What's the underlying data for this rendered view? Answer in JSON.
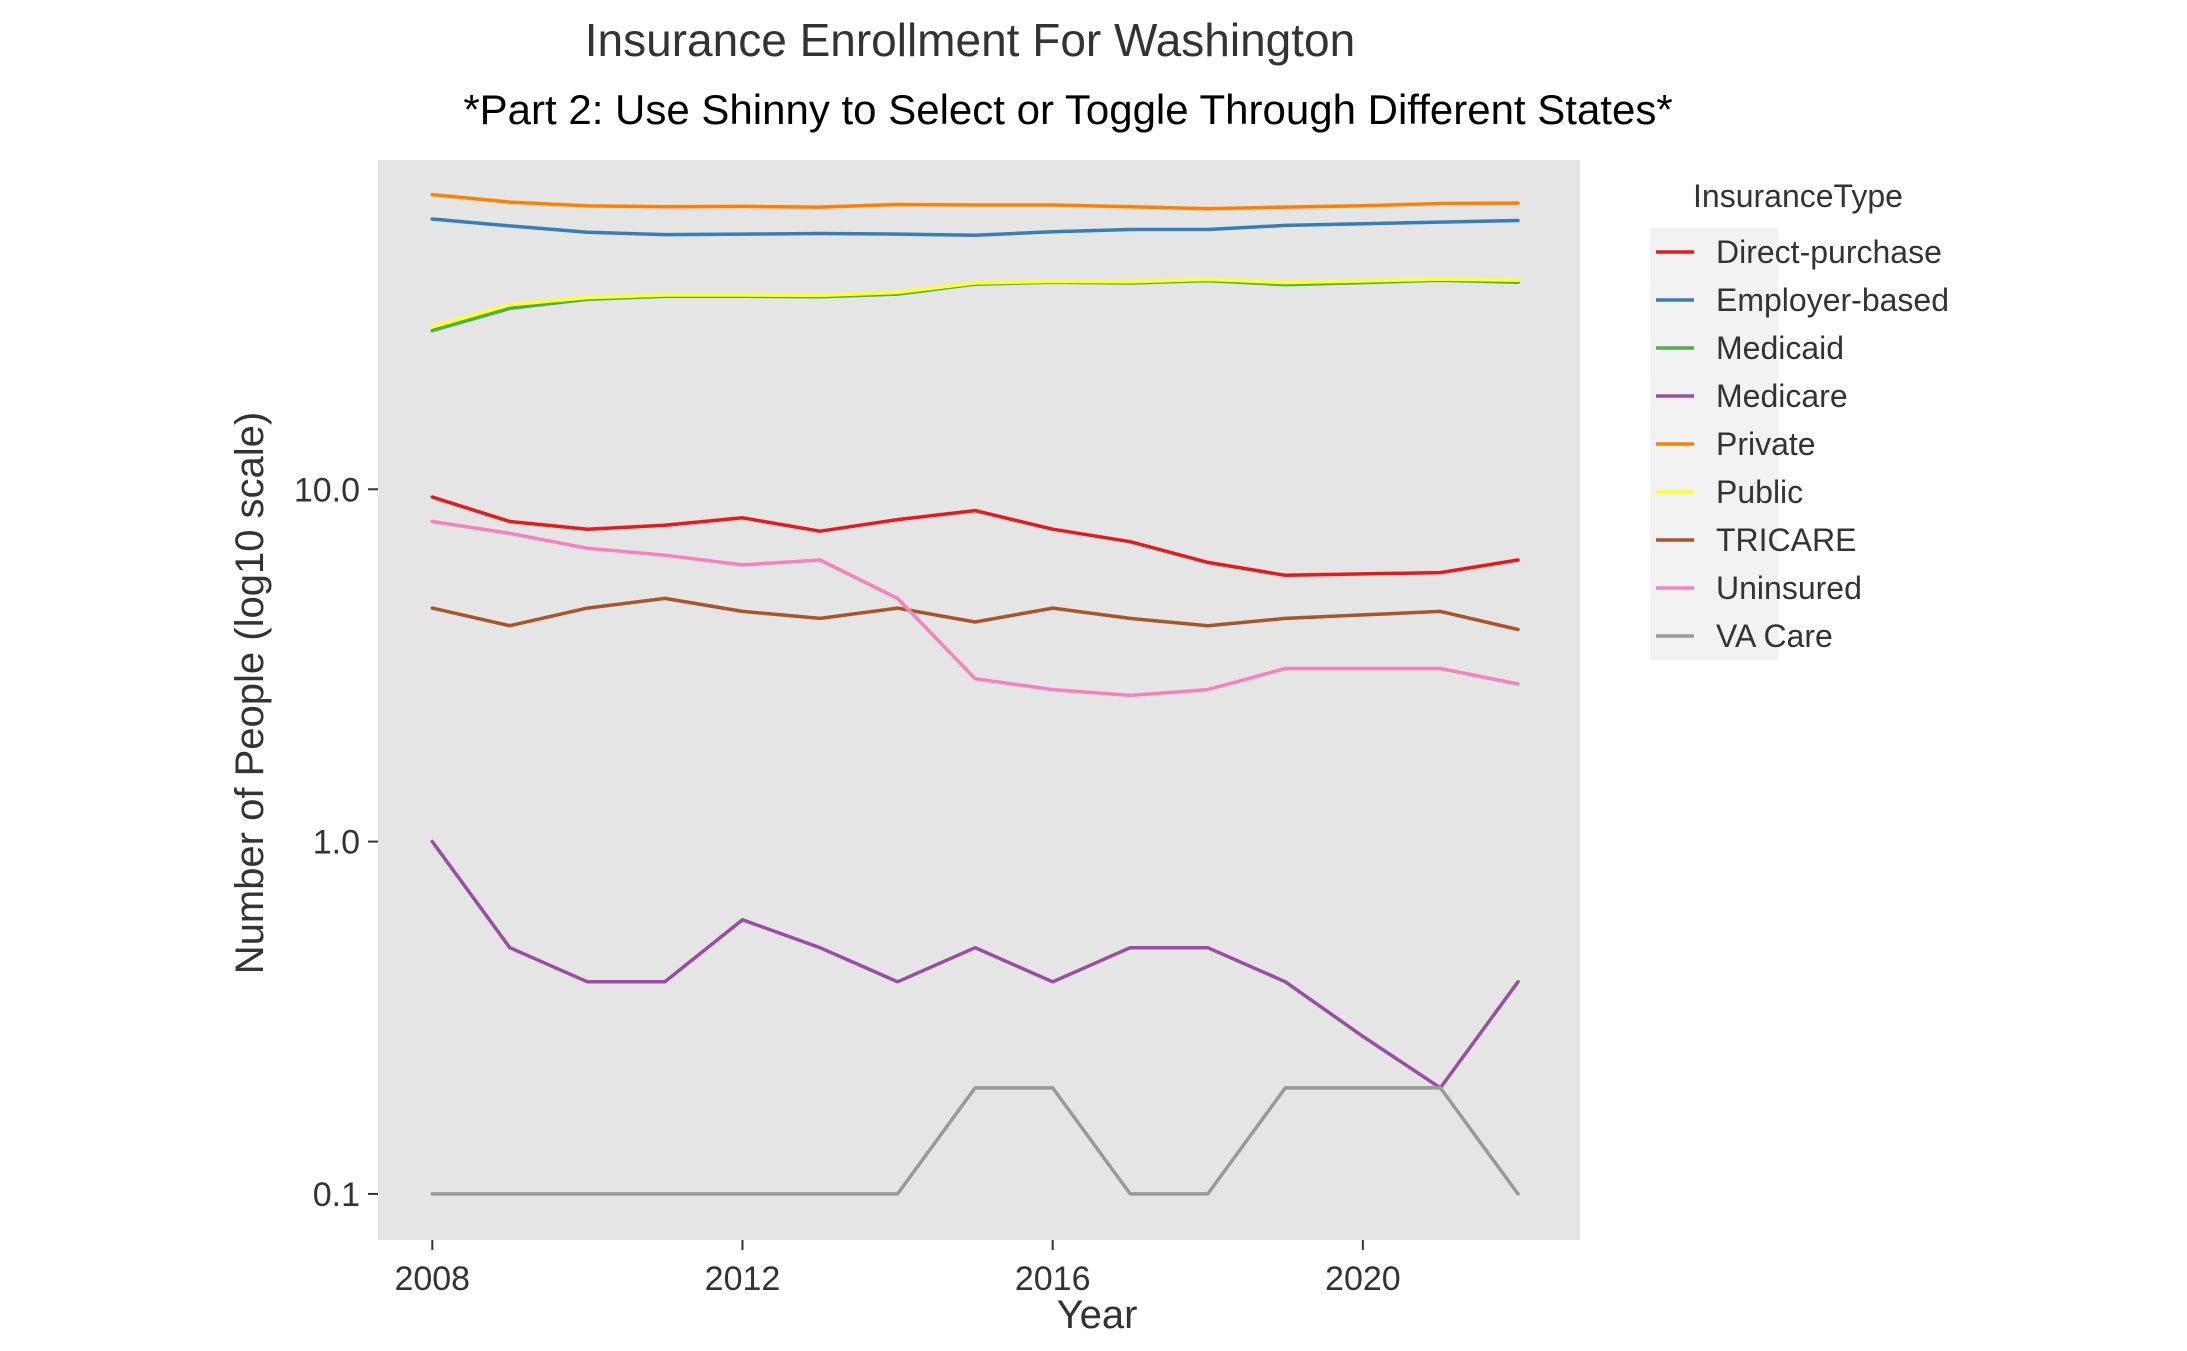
{
  "chart_data": {
    "type": "line",
    "title": "Insurance Enrollment For Washington",
    "subtitle": "*Part 2: Use Shinny to Select or Toggle Through Different States*",
    "xlabel": "Year",
    "ylabel": "Number of People (log10 scale)",
    "y_scale": "log10",
    "x_ticks": [
      2008,
      2012,
      2016,
      2020
    ],
    "y_ticks": [
      {
        "value": 0.1,
        "label": "0.1"
      },
      {
        "value": 1,
        "label": "1.0"
      },
      {
        "value": 10,
        "label": "10.0"
      }
    ],
    "xlim": [
      2007.3,
      2022.8
    ],
    "ylim": [
      0.074,
      86
    ],
    "grid": false,
    "background": "#E5E5E5",
    "legend": {
      "title": "InsuranceType",
      "position": "right"
    },
    "x": [
      2008,
      2009,
      2010,
      2011,
      2012,
      2013,
      2014,
      2015,
      2016,
      2017,
      2018,
      2019,
      2020,
      2021,
      2022
    ],
    "series": [
      {
        "name": "Direct-purchase",
        "color": "#E41A1C",
        "values": [
          9.5,
          8.1,
          7.7,
          7.9,
          8.3,
          7.6,
          8.2,
          8.7,
          7.7,
          7.1,
          6.2,
          5.7,
          5.75,
          5.8,
          6.3
        ]
      },
      {
        "name": "Employer-based",
        "color": "#377EB8",
        "values": [
          58.5,
          55.9,
          53.6,
          52.8,
          53.0,
          53.2,
          53.0,
          52.6,
          53.8,
          54.6,
          54.6,
          56.1,
          56.7,
          57.3,
          57.9
        ]
      },
      {
        "name": "Medicaid",
        "color": "#4DAF4A",
        "values": [
          28.2,
          32.6,
          34.6,
          35.3,
          35.3,
          35.2,
          35.8,
          38.2,
          38.7,
          38.5,
          39.1,
          38.1,
          38.6,
          39.2,
          38.7
        ]
      },
      {
        "name": "Medicare",
        "color": "#984EA3",
        "values": [
          1.0,
          0.5,
          0.4,
          0.4,
          0.6,
          0.5,
          0.4,
          0.5,
          0.4,
          0.5,
          0.5,
          0.4,
          0.28,
          0.2,
          0.4
        ]
      },
      {
        "name": "Private",
        "color": "#FF7F00",
        "values": [
          68.6,
          65.3,
          63.7,
          63.4,
          63.5,
          63.2,
          64.3,
          64.1,
          64.1,
          63.4,
          62.5,
          63.2,
          63.8,
          64.7,
          64.9
        ]
      },
      {
        "name": "Public",
        "color": "#FFFF33",
        "values": [
          28.9,
          33.4,
          35.0,
          35.6,
          35.6,
          35.5,
          36.2,
          38.5,
          38.9,
          38.8,
          39.4,
          38.6,
          39.0,
          39.5,
          39.2
        ]
      },
      {
        "name": "TRICARE",
        "color": "#A65628",
        "values": [
          4.6,
          4.1,
          4.6,
          4.9,
          4.5,
          4.3,
          4.6,
          4.2,
          4.6,
          4.3,
          4.1,
          4.3,
          4.4,
          4.5,
          4.0
        ]
      },
      {
        "name": "Uninsured",
        "color": "#F781BF",
        "values": [
          8.1,
          7.5,
          6.8,
          6.5,
          6.1,
          6.3,
          4.9,
          2.9,
          2.7,
          2.6,
          2.7,
          3.1,
          3.1,
          3.1,
          2.8
        ]
      },
      {
        "name": "VA Care",
        "color": "#999999",
        "values": [
          0.1,
          0.1,
          0.1,
          0.1,
          0.1,
          0.1,
          0.1,
          0.2,
          0.2,
          0.1,
          0.1,
          0.2,
          0.2,
          0.2,
          0.1
        ]
      }
    ]
  }
}
